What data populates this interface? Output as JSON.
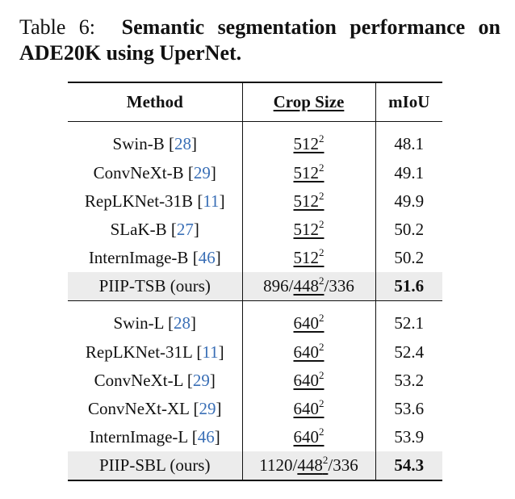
{
  "caption": {
    "label": "Table 6:",
    "title": "Semantic segmentation performance on ADE20K using UperNet."
  },
  "headers": {
    "method": "Method",
    "crop": "Crop Size",
    "miou": "mIoU"
  },
  "group1": [
    {
      "name": "Swin-B",
      "ref": "28",
      "crop": "512",
      "sup": "2",
      "miou": "48.1"
    },
    {
      "name": "ConvNeXt-B",
      "ref": "29",
      "crop": "512",
      "sup": "2",
      "miou": "49.1"
    },
    {
      "name": "RepLKNet-31B",
      "ref": "11",
      "crop": "512",
      "sup": "2",
      "miou": "49.9"
    },
    {
      "name": "SLaK-B",
      "ref": "27",
      "crop": "512",
      "sup": "2",
      "miou": "50.2"
    },
    {
      "name": "InternImage-B",
      "ref": "46",
      "crop": "512",
      "sup": "2",
      "miou": "50.2"
    }
  ],
  "ours1": {
    "name": "PIIP-TSB (ours)",
    "crop_pre": "896/",
    "crop_u": "448",
    "sup": "2",
    "crop_post": "/336",
    "miou": "51.6"
  },
  "group2": [
    {
      "name": "Swin-L",
      "ref": "28",
      "crop": "640",
      "sup": "2",
      "miou": "52.1"
    },
    {
      "name": "RepLKNet-31L",
      "ref": "11",
      "crop": "640",
      "sup": "2",
      "miou": "52.4"
    },
    {
      "name": "ConvNeXt-L",
      "ref": "29",
      "crop": "640",
      "sup": "2",
      "miou": "53.2"
    },
    {
      "name": "ConvNeXt-XL",
      "ref": "29",
      "crop": "640",
      "sup": "2",
      "miou": "53.6"
    },
    {
      "name": "InternImage-L",
      "ref": "46",
      "crop": "640",
      "sup": "2",
      "miou": "53.9"
    }
  ],
  "ours2": {
    "name": "PIIP-SBL (ours)",
    "crop_pre": "1120/",
    "crop_u": "448",
    "sup": "2",
    "crop_post": "/336",
    "miou": "54.3"
  }
}
